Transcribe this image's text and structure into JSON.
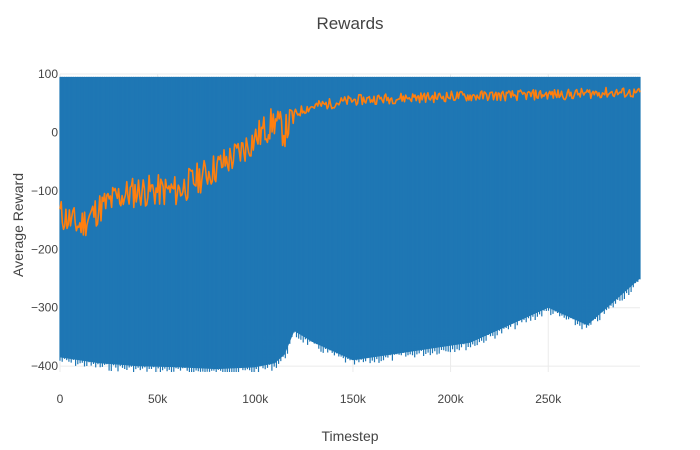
{
  "chart_data": {
    "type": "line",
    "title": "Rewards",
    "xlabel": "Timestep",
    "ylabel": "Average Reward",
    "xlim": [
      0,
      297000
    ],
    "ylim": [
      -410,
      100
    ],
    "x_ticks": [
      {
        "value": 0,
        "label": "0"
      },
      {
        "value": 50000,
        "label": "50k"
      },
      {
        "value": 100000,
        "label": "100k"
      },
      {
        "value": 150000,
        "label": "150k"
      },
      {
        "value": 200000,
        "label": "200k"
      },
      {
        "value": 250000,
        "label": "250k"
      }
    ],
    "y_ticks": [
      {
        "value": 100,
        "label": "100"
      },
      {
        "value": 0,
        "label": "0"
      },
      {
        "value": -100,
        "label": "−100"
      },
      {
        "value": -200,
        "label": "−200"
      },
      {
        "value": -300,
        "label": "−300"
      },
      {
        "value": -400,
        "label": "−400"
      }
    ],
    "grid": true,
    "legend": "none",
    "colors": {
      "series_1": "#1f77b4",
      "series_2": "#ff7f0e"
    },
    "series": [
      {
        "style": "dense band (per-episode reward, min/max envelope)",
        "x": [
          0,
          20000,
          40000,
          60000,
          80000,
          100000,
          110000,
          115000,
          120000,
          130000,
          150000,
          170000,
          190000,
          210000,
          230000,
          250000,
          270000,
          297000
        ],
        "upper": [
          95,
          95,
          95,
          95,
          95,
          95,
          95,
          95,
          95,
          95,
          95,
          95,
          95,
          95,
          95,
          95,
          95,
          95
        ],
        "lower": [
          -385,
          -395,
          -400,
          -402,
          -405,
          -402,
          -395,
          -380,
          -340,
          -360,
          -390,
          -380,
          -370,
          -360,
          -330,
          -300,
          -330,
          -250
        ]
      },
      {
        "style": "line (average reward)",
        "x": [
          0,
          10000,
          20000,
          30000,
          40000,
          50000,
          60000,
          70000,
          80000,
          90000,
          100000,
          105000,
          110000,
          115000,
          120000,
          125000,
          130000,
          140000,
          150000,
          160000,
          170000,
          180000,
          190000,
          200000,
          210000,
          220000,
          230000,
          240000,
          250000,
          260000,
          270000,
          280000,
          290000,
          297000
        ],
        "y": [
          -140,
          -160,
          -130,
          -110,
          -100,
          -100,
          -100,
          -80,
          -60,
          -40,
          -10,
          5,
          20,
          0,
          30,
          40,
          45,
          50,
          55,
          57,
          58,
          60,
          60,
          62,
          62,
          63,
          63,
          64,
          65,
          65,
          67,
          68,
          68,
          67
        ]
      }
    ]
  }
}
